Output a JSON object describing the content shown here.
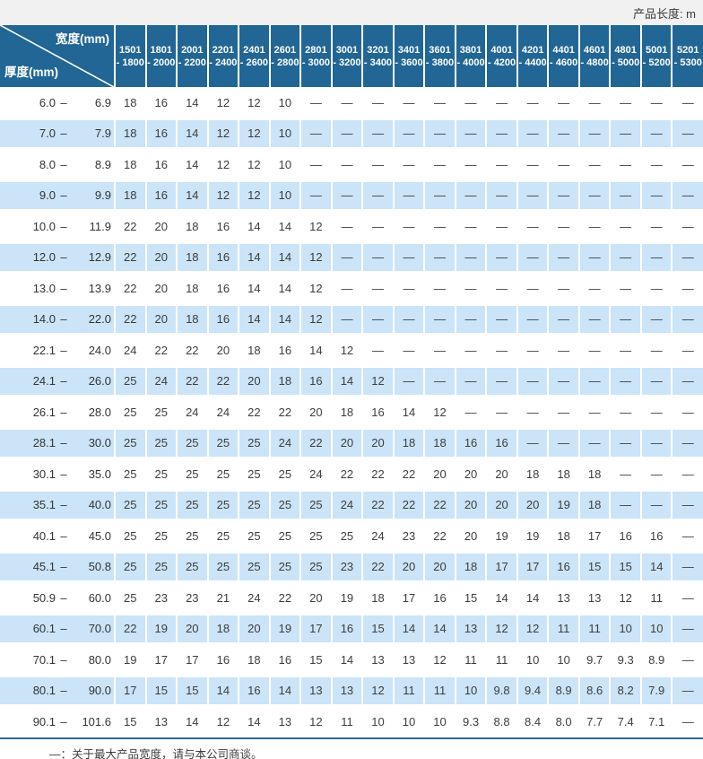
{
  "page": {
    "length_note": "产品长度: m",
    "footnote": "—：关于最大产品宽度，请与本公司商谈。"
  },
  "colors": {
    "header_blue": "#216695",
    "row_alt_blue": "#cbe4f7",
    "footer_line_blue": "#2e6593",
    "top_strip_gray": "#f1f1f1"
  },
  "table": {
    "corner": {
      "width_label": "宽度(mm)",
      "thickness_label": "厚度(mm)"
    }
  },
  "chart_data": {
    "type": "table",
    "title": "",
    "unit_note": "产品长度: m",
    "column_axis_label": "宽度(mm)",
    "row_axis_label": "厚度(mm)",
    "range_separator": "–",
    "dash": "—",
    "columns": [
      {
        "line1": "1501",
        "line2": "- 1800"
      },
      {
        "line1": "1801",
        "line2": "- 2000"
      },
      {
        "line1": "2001",
        "line2": "- 2200"
      },
      {
        "line1": "2201",
        "line2": "- 2400"
      },
      {
        "line1": "2401",
        "line2": "- 2600"
      },
      {
        "line1": "2601",
        "line2": "- 2800"
      },
      {
        "line1": "2801",
        "line2": "- 3000"
      },
      {
        "line1": "3001",
        "line2": "- 3200"
      },
      {
        "line1": "3201",
        "line2": "- 3400"
      },
      {
        "line1": "3401",
        "line2": "- 3600"
      },
      {
        "line1": "3601",
        "line2": "- 3800"
      },
      {
        "line1": "3801",
        "line2": "- 4000"
      },
      {
        "line1": "4001",
        "line2": "- 4200"
      },
      {
        "line1": "4201",
        "line2": "- 4400"
      },
      {
        "line1": "4401",
        "line2": "- 4600"
      },
      {
        "line1": "4601",
        "line2": "- 4800"
      },
      {
        "line1": "4801",
        "line2": "- 5000"
      },
      {
        "line1": "5001",
        "line2": "- 5200"
      },
      {
        "line1": "5201",
        "line2": "- 5300"
      }
    ],
    "rows": [
      {
        "lo": "6.0",
        "hi": "6.9",
        "values": [
          "18",
          "16",
          "14",
          "12",
          "12",
          "10",
          "—",
          "—",
          "—",
          "—",
          "—",
          "—",
          "—",
          "—",
          "—",
          "—",
          "—",
          "—",
          "—"
        ]
      },
      {
        "lo": "7.0",
        "hi": "7.9",
        "values": [
          "18",
          "16",
          "14",
          "12",
          "12",
          "10",
          "—",
          "—",
          "—",
          "—",
          "—",
          "—",
          "—",
          "—",
          "—",
          "—",
          "—",
          "—",
          "—"
        ]
      },
      {
        "lo": "8.0",
        "hi": "8.9",
        "values": [
          "18",
          "16",
          "14",
          "12",
          "12",
          "10",
          "—",
          "—",
          "—",
          "—",
          "—",
          "—",
          "—",
          "—",
          "—",
          "—",
          "—",
          "—",
          "—"
        ]
      },
      {
        "lo": "9.0",
        "hi": "9.9",
        "values": [
          "18",
          "16",
          "14",
          "12",
          "12",
          "10",
          "—",
          "—",
          "—",
          "—",
          "—",
          "—",
          "—",
          "—",
          "—",
          "—",
          "—",
          "—",
          "—"
        ]
      },
      {
        "lo": "10.0",
        "hi": "11.9",
        "values": [
          "22",
          "20",
          "18",
          "16",
          "14",
          "14",
          "12",
          "—",
          "—",
          "—",
          "—",
          "—",
          "—",
          "—",
          "—",
          "—",
          "—",
          "—",
          "—"
        ]
      },
      {
        "lo": "12.0",
        "hi": "12.9",
        "values": [
          "22",
          "20",
          "18",
          "16",
          "14",
          "14",
          "12",
          "—",
          "—",
          "—",
          "—",
          "—",
          "—",
          "—",
          "—",
          "—",
          "—",
          "—",
          "—"
        ]
      },
      {
        "lo": "13.0",
        "hi": "13.9",
        "values": [
          "22",
          "20",
          "18",
          "16",
          "14",
          "14",
          "12",
          "—",
          "—",
          "—",
          "—",
          "—",
          "—",
          "—",
          "—",
          "—",
          "—",
          "—",
          "—"
        ]
      },
      {
        "lo": "14.0",
        "hi": "22.0",
        "values": [
          "22",
          "20",
          "18",
          "16",
          "14",
          "14",
          "12",
          "—",
          "—",
          "—",
          "—",
          "—",
          "—",
          "—",
          "—",
          "—",
          "—",
          "—",
          "—"
        ]
      },
      {
        "lo": "22.1",
        "hi": "24.0",
        "values": [
          "24",
          "22",
          "22",
          "20",
          "18",
          "16",
          "14",
          "12",
          "—",
          "—",
          "—",
          "—",
          "—",
          "—",
          "—",
          "—",
          "—",
          "—",
          "—"
        ]
      },
      {
        "lo": "24.1",
        "hi": "26.0",
        "values": [
          "25",
          "24",
          "22",
          "22",
          "20",
          "18",
          "16",
          "14",
          "12",
          "—",
          "—",
          "—",
          "—",
          "—",
          "—",
          "—",
          "—",
          "—",
          "—"
        ]
      },
      {
        "lo": "26.1",
        "hi": "28.0",
        "values": [
          "25",
          "25",
          "24",
          "24",
          "22",
          "22",
          "20",
          "18",
          "16",
          "14",
          "12",
          "—",
          "—",
          "—",
          "—",
          "—",
          "—",
          "—",
          "—"
        ]
      },
      {
        "lo": "28.1",
        "hi": "30.0",
        "values": [
          "25",
          "25",
          "25",
          "25",
          "25",
          "24",
          "22",
          "20",
          "20",
          "18",
          "18",
          "16",
          "16",
          "—",
          "—",
          "—",
          "—",
          "—",
          "—"
        ]
      },
      {
        "lo": "30.1",
        "hi": "35.0",
        "values": [
          "25",
          "25",
          "25",
          "25",
          "25",
          "25",
          "24",
          "22",
          "22",
          "22",
          "20",
          "20",
          "20",
          "18",
          "18",
          "18",
          "—",
          "—",
          "—"
        ]
      },
      {
        "lo": "35.1",
        "hi": "40.0",
        "values": [
          "25",
          "25",
          "25",
          "25",
          "25",
          "25",
          "25",
          "24",
          "22",
          "22",
          "22",
          "20",
          "20",
          "20",
          "19",
          "18",
          "—",
          "—",
          "—"
        ]
      },
      {
        "lo": "40.1",
        "hi": "45.0",
        "values": [
          "25",
          "25",
          "25",
          "25",
          "25",
          "25",
          "25",
          "25",
          "24",
          "23",
          "22",
          "20",
          "19",
          "19",
          "18",
          "17",
          "16",
          "16",
          "—"
        ]
      },
      {
        "lo": "45.1",
        "hi": "50.8",
        "values": [
          "25",
          "25",
          "25",
          "25",
          "25",
          "25",
          "25",
          "23",
          "22",
          "20",
          "20",
          "18",
          "17",
          "17",
          "16",
          "15",
          "15",
          "14",
          "—"
        ]
      },
      {
        "lo": "50.9",
        "hi": "60.0",
        "values": [
          "25",
          "23",
          "23",
          "21",
          "24",
          "22",
          "20",
          "19",
          "18",
          "17",
          "16",
          "15",
          "14",
          "14",
          "13",
          "13",
          "12",
          "11",
          "—"
        ]
      },
      {
        "lo": "60.1",
        "hi": "70.0",
        "values": [
          "22",
          "19",
          "20",
          "18",
          "20",
          "19",
          "17",
          "16",
          "15",
          "14",
          "14",
          "13",
          "12",
          "12",
          "11",
          "11",
          "10",
          "10",
          "—"
        ]
      },
      {
        "lo": "70.1",
        "hi": "80.0",
        "values": [
          "19",
          "17",
          "17",
          "16",
          "18",
          "16",
          "15",
          "14",
          "13",
          "13",
          "12",
          "11",
          "11",
          "10",
          "10",
          "9.7",
          "9.3",
          "8.9",
          "—"
        ]
      },
      {
        "lo": "80.1",
        "hi": "90.0",
        "values": [
          "17",
          "15",
          "15",
          "14",
          "16",
          "14",
          "13",
          "13",
          "12",
          "11",
          "11",
          "10",
          "9.8",
          "9.4",
          "8.9",
          "8.6",
          "8.2",
          "7.9",
          "—"
        ]
      },
      {
        "lo": "90.1",
        "hi": "101.6",
        "values": [
          "15",
          "13",
          "14",
          "12",
          "14",
          "13",
          "12",
          "11",
          "10",
          "10",
          "10",
          "9.3",
          "8.8",
          "8.4",
          "8.0",
          "7.7",
          "7.4",
          "7.1",
          "—"
        ]
      }
    ],
    "footnote": "—：关于最大产品宽度，请与本公司商谈。"
  }
}
